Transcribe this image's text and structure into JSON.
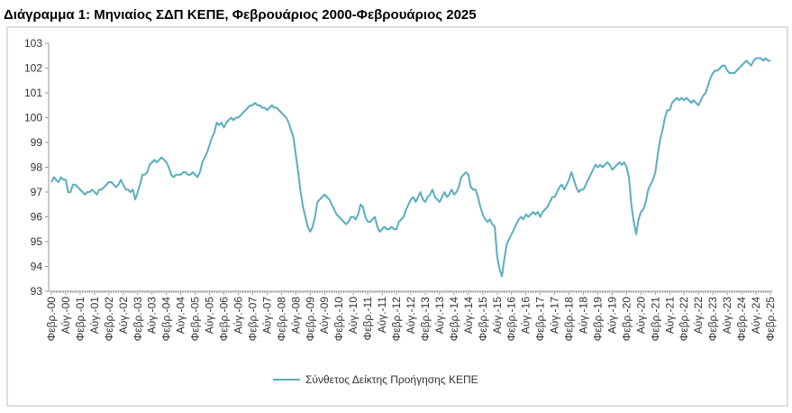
{
  "chart_data": {
    "type": "line",
    "title": "Διάγραμμα 1: Μηνιαίος ΣΔΠ ΚΕΠΕ, Φεβρουάριος 2000-Φεβρουάριος 2025",
    "categories": [
      "Φεβρ.-00",
      null,
      null,
      null,
      null,
      null,
      "Αύγ.-00",
      null,
      null,
      null,
      null,
      null,
      "Φεβρ.-01",
      null,
      null,
      null,
      null,
      null,
      "Αύγ.-01",
      null,
      null,
      null,
      null,
      null,
      "Φεβρ.-02",
      null,
      null,
      null,
      null,
      null,
      "Αύγ.-02",
      null,
      null,
      null,
      null,
      null,
      "Φεβρ.-03",
      null,
      null,
      null,
      null,
      null,
      "Αύγ.-03",
      null,
      null,
      null,
      null,
      null,
      "Φεβρ.-04",
      null,
      null,
      null,
      null,
      null,
      "Αύγ.-04",
      null,
      null,
      null,
      null,
      null,
      "Φεβρ.-05",
      null,
      null,
      null,
      null,
      null,
      "Αύγ.-05",
      null,
      null,
      null,
      null,
      null,
      "Φεβρ.-06",
      null,
      null,
      null,
      null,
      null,
      "Αύγ.-06",
      null,
      null,
      null,
      null,
      null,
      "Φεβρ.-07",
      null,
      null,
      null,
      null,
      null,
      "Αύγ.-07",
      null,
      null,
      null,
      null,
      null,
      "Φεβρ.-08",
      null,
      null,
      null,
      null,
      null,
      "Αύγ.-08",
      null,
      null,
      null,
      null,
      null,
      "Φεβρ.-09",
      null,
      null,
      null,
      null,
      null,
      "Αύγ.-09",
      null,
      null,
      null,
      null,
      null,
      "Φεβρ.-10",
      null,
      null,
      null,
      null,
      null,
      "Αύγ.-10",
      null,
      null,
      null,
      null,
      null,
      "Φεβρ.-11",
      null,
      null,
      null,
      null,
      null,
      "Αύγ.-11",
      null,
      null,
      null,
      null,
      null,
      "Φεβρ.-12",
      null,
      null,
      null,
      null,
      null,
      "Αύγ.-12",
      null,
      null,
      null,
      null,
      null,
      "Φεβρ.-13",
      null,
      null,
      null,
      null,
      null,
      "Αύγ.-13",
      null,
      null,
      null,
      null,
      null,
      "Φεβρ.-14",
      null,
      null,
      null,
      null,
      null,
      "Αύγ.-14",
      null,
      null,
      null,
      null,
      null,
      "Φεβρ.-15",
      null,
      null,
      null,
      null,
      null,
      "Αύγ.-15",
      null,
      null,
      null,
      null,
      null,
      "Φεβρ.-16",
      null,
      null,
      null,
      null,
      null,
      "Αύγ.-16",
      null,
      null,
      null,
      null,
      null,
      "Φεβρ.-17",
      null,
      null,
      null,
      null,
      null,
      "Αύγ.-17",
      null,
      null,
      null,
      null,
      null,
      "Φεβρ.-18",
      null,
      null,
      null,
      null,
      null,
      "Αύγ.-18",
      null,
      null,
      null,
      null,
      null,
      "Φεβρ.-19",
      null,
      null,
      null,
      null,
      null,
      "Αύγ.-19",
      null,
      null,
      null,
      null,
      null,
      "Φεβρ.-20",
      null,
      null,
      null,
      null,
      null,
      "Αύγ.-20",
      null,
      null,
      null,
      null,
      null,
      "Φεβρ.-21",
      null,
      null,
      null,
      null,
      null,
      "Αύγ.-21",
      null,
      null,
      null,
      null,
      null,
      "Φεβρ.-22",
      null,
      null,
      null,
      null,
      null,
      "Αύγ.-22",
      null,
      null,
      null,
      null,
      null,
      "Φεβρ.-23",
      null,
      null,
      null,
      null,
      null,
      "Αύγ.-23",
      null,
      null,
      null,
      null,
      null,
      "Φεβρ.-24",
      null,
      null,
      null,
      null,
      null,
      "Αύγ.-24",
      null,
      null,
      null,
      null,
      null,
      "Φεβρ.-25"
    ],
    "series": [
      {
        "name": "Σύνθετος Δείκτης Προήγησης ΚΕΠΕ",
        "color": "#5aaebf",
        "values": [
          97.4,
          97.6,
          97.5,
          97.4,
          97.6,
          97.5,
          97.5,
          97.0,
          97.0,
          97.3,
          97.3,
          97.2,
          97.1,
          97.0,
          96.9,
          97.0,
          97.0,
          97.1,
          97.0,
          96.9,
          97.1,
          97.1,
          97.2,
          97.3,
          97.4,
          97.4,
          97.3,
          97.2,
          97.3,
          97.5,
          97.3,
          97.1,
          97.1,
          97.0,
          97.1,
          96.7,
          97.0,
          97.3,
          97.7,
          97.7,
          97.8,
          98.1,
          98.2,
          98.3,
          98.2,
          98.3,
          98.4,
          98.3,
          98.2,
          98.0,
          97.7,
          97.6,
          97.7,
          97.7,
          97.7,
          97.8,
          97.8,
          97.7,
          97.7,
          97.8,
          97.7,
          97.6,
          97.8,
          98.2,
          98.4,
          98.6,
          98.9,
          99.2,
          99.4,
          99.8,
          99.7,
          99.8,
          99.6,
          99.8,
          99.9,
          100.0,
          99.9,
          100.0,
          100.0,
          100.1,
          100.2,
          100.3,
          100.4,
          100.5,
          100.5,
          100.6,
          100.5,
          100.5,
          100.4,
          100.4,
          100.3,
          100.4,
          100.5,
          100.4,
          100.4,
          100.3,
          100.2,
          100.1,
          100.0,
          99.8,
          99.5,
          99.2,
          98.5,
          97.8,
          97.0,
          96.4,
          96.0,
          95.6,
          95.4,
          95.6,
          96.0,
          96.6,
          96.7,
          96.8,
          96.9,
          96.8,
          96.7,
          96.5,
          96.3,
          96.1,
          96.0,
          95.9,
          95.8,
          95.7,
          95.8,
          96.0,
          96.0,
          95.9,
          96.1,
          96.5,
          96.4,
          96.0,
          95.8,
          95.8,
          95.9,
          96.0,
          95.6,
          95.4,
          95.5,
          95.6,
          95.5,
          95.5,
          95.6,
          95.5,
          95.5,
          95.8,
          95.9,
          96.0,
          96.3,
          96.5,
          96.7,
          96.8,
          96.6,
          96.8,
          97.0,
          96.7,
          96.6,
          96.8,
          96.9,
          97.1,
          96.8,
          96.7,
          96.6,
          96.8,
          97.0,
          96.8,
          96.9,
          97.1,
          96.9,
          97.0,
          97.2,
          97.6,
          97.7,
          97.8,
          97.7,
          97.2,
          97.1,
          97.1,
          96.8,
          96.4,
          96.1,
          95.9,
          95.8,
          95.9,
          95.7,
          95.6,
          94.4,
          93.9,
          93.6,
          94.3,
          94.9,
          95.1,
          95.3,
          95.5,
          95.7,
          95.9,
          96.0,
          95.9,
          96.1,
          96.0,
          96.1,
          96.2,
          96.1,
          96.2,
          96.0,
          96.2,
          96.3,
          96.4,
          96.6,
          96.8,
          96.8,
          97.0,
          97.2,
          97.3,
          97.1,
          97.3,
          97.5,
          97.8,
          97.5,
          97.2,
          97.0,
          97.1,
          97.1,
          97.3,
          97.5,
          97.7,
          97.9,
          98.1,
          98.0,
          98.1,
          98.0,
          98.1,
          98.2,
          98.1,
          97.9,
          98.0,
          98.1,
          98.2,
          98.1,
          98.2,
          98.0,
          97.6,
          96.5,
          95.8,
          95.3,
          95.9,
          96.2,
          96.3,
          96.6,
          97.1,
          97.3,
          97.5,
          97.8,
          98.5,
          99.1,
          99.5,
          100.0,
          100.3,
          100.3,
          100.6,
          100.7,
          100.8,
          100.7,
          100.8,
          100.7,
          100.8,
          100.7,
          100.6,
          100.7,
          100.6,
          100.5,
          100.7,
          100.9,
          101.0,
          101.3,
          101.6,
          101.8,
          101.9,
          101.9,
          102.0,
          102.1,
          102.1,
          101.9,
          101.8,
          101.8,
          101.8,
          101.9,
          102.0,
          102.1,
          102.2,
          102.3,
          102.2,
          102.1,
          102.3,
          102.4,
          102.4,
          102.4,
          102.3,
          102.4,
          102.3,
          102.3
        ]
      }
    ],
    "ylim": [
      93,
      103
    ],
    "yticks": [
      93,
      94,
      95,
      96,
      97,
      98,
      99,
      100,
      101,
      102,
      103
    ],
    "grid": false,
    "legend": "bottom"
  }
}
